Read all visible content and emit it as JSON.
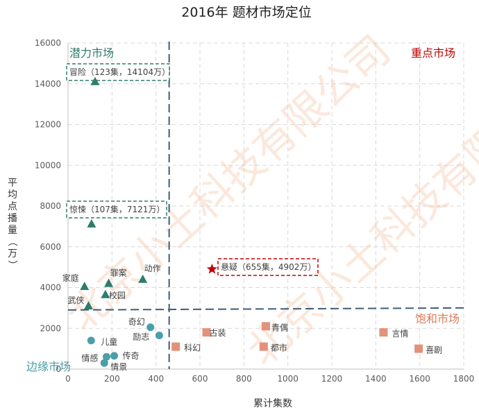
{
  "chart_data": {
    "type": "scatter",
    "title": "2016年 题材市场定位",
    "xlabel": "累计集数",
    "ylabel": "平均点播量（万）",
    "xlim": [
      0,
      1800
    ],
    "ylim": [
      0,
      16000
    ],
    "xticks": [
      0,
      200,
      400,
      600,
      800,
      1000,
      1200,
      1400,
      1600,
      1800
    ],
    "yticks": [
      0,
      2000,
      4000,
      6000,
      8000,
      10000,
      12000,
      14000,
      16000
    ],
    "grid": true,
    "quadrants": [
      {
        "label": "潜力市场",
        "color": "#2e7d6b",
        "position": "top-left"
      },
      {
        "label": "重点市场",
        "color": "#c00000",
        "position": "top-right"
      },
      {
        "label": "饱和市场",
        "color": "#e07b53",
        "position": "right"
      },
      {
        "label": "边缘市场",
        "color": "#4a9fa8",
        "position": "bottom-left"
      }
    ],
    "series": [
      {
        "marker": "triangle",
        "color": "#2e7d6b",
        "points": [
          {
            "label": "冒险",
            "x": 123,
            "y": 14104
          },
          {
            "label": "惊悚",
            "x": 107,
            "y": 7121
          },
          {
            "label": "家庭",
            "x": 75,
            "y": 4050
          },
          {
            "label": "罪案",
            "x": 185,
            "y": 4200
          },
          {
            "label": "动作",
            "x": 340,
            "y": 4400
          },
          {
            "label": "校园",
            "x": 170,
            "y": 3650
          },
          {
            "label": "武侠",
            "x": 93,
            "y": 3100
          }
        ]
      },
      {
        "marker": "circle",
        "color": "#4a9fa8",
        "points": [
          {
            "label": "奇幻",
            "x": 375,
            "y": 2050
          },
          {
            "label": "励志",
            "x": 415,
            "y": 1650
          },
          {
            "label": "儿童",
            "x": 105,
            "y": 1400
          },
          {
            "label": "传奇",
            "x": 210,
            "y": 650
          },
          {
            "label": "情感",
            "x": 175,
            "y": 600
          },
          {
            "label": "情景",
            "x": 165,
            "y": 300
          }
        ]
      },
      {
        "marker": "square",
        "color": "#e3927a",
        "points": [
          {
            "label": "古装",
            "x": 630,
            "y": 1800
          },
          {
            "label": "青偶",
            "x": 900,
            "y": 2100
          },
          {
            "label": "科幻",
            "x": 490,
            "y": 1100
          },
          {
            "label": "都市",
            "x": 890,
            "y": 1100
          },
          {
            "label": "言情",
            "x": 1435,
            "y": 1800
          },
          {
            "label": "喜剧",
            "x": 1595,
            "y": 1000
          }
        ]
      },
      {
        "marker": "star",
        "color": "#c00000",
        "points": [
          {
            "label": "悬疑",
            "x": 655,
            "y": 4902
          }
        ]
      }
    ],
    "annotations": [
      {
        "text": "冒险（123集，14104万）",
        "style": "green-dashed"
      },
      {
        "text": "惊悚（107集，7121万）",
        "style": "green-dashed"
      },
      {
        "text": "悬疑（655集，4902万）",
        "style": "red-dashed"
      }
    ],
    "divider_lines": {
      "vertical_x": 460,
      "horizontal_y_start": 2900,
      "horizontal_y_end": 3000
    }
  },
  "watermark": "北京小土科技有限公司"
}
